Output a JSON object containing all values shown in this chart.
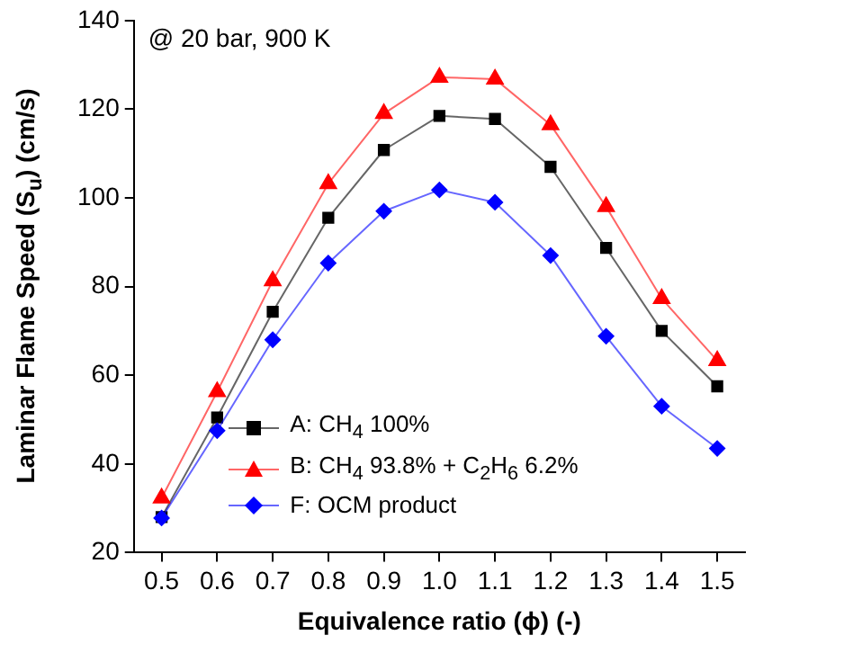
{
  "chart_data": {
    "type": "line",
    "xlabel": "Equivalence ratio (ϕ) (-)",
    "ylabel": "Laminar Flame Speed (S$_{u}$) (cm/s)",
    "annotations": [
      "@ 20 bar, 900 K"
    ],
    "x": [
      0.5,
      0.6,
      0.7,
      0.8,
      0.9,
      1.0,
      1.1,
      1.2,
      1.3,
      1.4,
      1.5
    ],
    "xlim": [
      0.45,
      1.55
    ],
    "xticks": [
      {
        "value": 0.5,
        "label": "0.5"
      },
      {
        "value": 0.6,
        "label": "0.6"
      },
      {
        "value": 0.7,
        "label": "0.7"
      },
      {
        "value": 0.8,
        "label": "0.8"
      },
      {
        "value": 0.9,
        "label": "0.9"
      },
      {
        "value": 1.0,
        "label": "1.0"
      },
      {
        "value": 1.1,
        "label": "1.1"
      },
      {
        "value": 1.2,
        "label": "1.2"
      },
      {
        "value": 1.3,
        "label": "1.3"
      },
      {
        "value": 1.4,
        "label": "1.4"
      },
      {
        "value": 1.5,
        "label": "1.5"
      }
    ],
    "ylim": [
      20,
      140
    ],
    "yticks": [
      20,
      40,
      60,
      80,
      100,
      120,
      140
    ],
    "grid": false,
    "legend": "bottom",
    "line_style": "solid",
    "series": [
      {
        "name": "A: CH$_{4}$ 100%",
        "color": "#000000",
        "marker": "square",
        "values": [
          28,
          50.5,
          74.3,
          95.5,
          110.8,
          118.5,
          117.8,
          107,
          88.7,
          70,
          57.5
        ]
      },
      {
        "name": "B: CH$_{4}$ 93.8% + C$_{2}$H$_{6}$ 6.2%",
        "color": "#ff0000",
        "marker": "triangle",
        "values": [
          32.3,
          56.3,
          81.3,
          103.2,
          119,
          127.2,
          126.8,
          116.5,
          98,
          77.3,
          63.3
        ]
      },
      {
        "name": "F: OCM product",
        "color": "#0000ff",
        "marker": "diamond",
        "values": [
          27.8,
          47.5,
          68,
          85.3,
          97,
          101.8,
          99,
          87,
          68.8,
          53,
          43.5
        ]
      }
    ]
  }
}
